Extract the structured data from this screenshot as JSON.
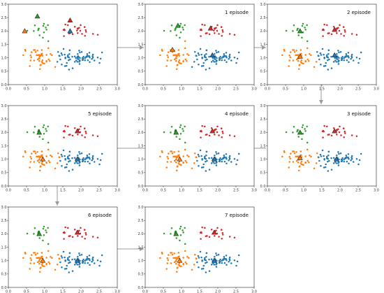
{
  "colors": {
    "blue": "#1f77b4",
    "orange": "#ff7f0e",
    "green": "#2ca02c",
    "red": "#d62728",
    "arrow": "#999999"
  },
  "chart_data": {
    "type": "scatter",
    "axis": {
      "xlim": [
        0,
        3
      ],
      "ylim": [
        0,
        3
      ],
      "xticks": [
        "0.0",
        "0.5",
        "1.0",
        "1.5",
        "2.0",
        "2.5",
        "3.0"
      ],
      "yticks": [
        "0.0",
        "0.5",
        "1.0",
        "1.5",
        "2.0",
        "2.5",
        "3.0"
      ]
    },
    "panels": [
      {
        "label": "",
        "centroids": [
          [
            1.7,
            2.0
          ],
          [
            0.45,
            2.0
          ],
          [
            0.8,
            2.55
          ],
          [
            1.7,
            2.4
          ]
        ]
      },
      {
        "label": "1 episode",
        "centroids": [
          [
            1.85,
            1.1
          ],
          [
            0.75,
            1.3
          ],
          [
            0.9,
            2.2
          ],
          [
            1.8,
            2.1
          ]
        ]
      },
      {
        "label": "2 episode",
        "centroids": [
          [
            1.85,
            1.1
          ],
          [
            0.9,
            1.05
          ],
          [
            0.9,
            2.0
          ],
          [
            1.85,
            2.05
          ]
        ]
      },
      {
        "label": "3 episode",
        "centroids": [
          [
            1.9,
            1.0
          ],
          [
            0.9,
            1.05
          ],
          [
            0.9,
            2.0
          ],
          [
            1.85,
            2.05
          ]
        ]
      },
      {
        "label": "4 episode",
        "centroids": [
          [
            1.9,
            1.0
          ],
          [
            0.95,
            1.0
          ],
          [
            0.85,
            2.0
          ],
          [
            1.85,
            2.05
          ]
        ]
      },
      {
        "label": "5 episode",
        "centroids": [
          [
            1.9,
            1.0
          ],
          [
            0.95,
            1.0
          ],
          [
            0.85,
            2.0
          ],
          [
            1.9,
            2.05
          ]
        ]
      },
      {
        "label": "6 episode",
        "centroids": [
          [
            1.9,
            1.0
          ],
          [
            0.95,
            1.0
          ],
          [
            0.85,
            2.0
          ],
          [
            1.9,
            2.05
          ]
        ]
      },
      {
        "label": "7 episode",
        "centroids": [
          [
            1.9,
            1.0
          ],
          [
            0.95,
            1.0
          ],
          [
            0.85,
            2.0
          ],
          [
            1.9,
            2.05
          ]
        ]
      }
    ],
    "initial_cluster": [
      0,
      0,
      1,
      0,
      0,
      0,
      0,
      3,
      0,
      2,
      0,
      1,
      2,
      0,
      1,
      0,
      3,
      0,
      2,
      0,
      2,
      3,
      1,
      3,
      0,
      0,
      3,
      0,
      3,
      3,
      0,
      1,
      0,
      2,
      3,
      1,
      2,
      3,
      3,
      3,
      0,
      3,
      1,
      3,
      1,
      3,
      1,
      1,
      1,
      1,
      0,
      1,
      0,
      1,
      0,
      0,
      1,
      1,
      0,
      0,
      2,
      0,
      0,
      0,
      1,
      0,
      3,
      0,
      0,
      1,
      0,
      1,
      2,
      2,
      0,
      1,
      1,
      0,
      0,
      2,
      2,
      1,
      3,
      0,
      3,
      1,
      3,
      3,
      0,
      0,
      1,
      0,
      1,
      1,
      0,
      1,
      0,
      1,
      1,
      0,
      0,
      0,
      0,
      1,
      0,
      3,
      1,
      1,
      1,
      0,
      0,
      0,
      0,
      1,
      0,
      0,
      1,
      0,
      0,
      0,
      0,
      0,
      0,
      0,
      1,
      2,
      0,
      3,
      1,
      1,
      3,
      1,
      3,
      0,
      1,
      0,
      3,
      1,
      1,
      0,
      2,
      0,
      0,
      0,
      0,
      0,
      0,
      0,
      0,
      2,
      0,
      1,
      0,
      1,
      3,
      1,
      0,
      2,
      3,
      0
    ],
    "points": [
      [
        1.9,
        0.85,
        0
      ],
      [
        1.35,
        0.85,
        0
      ],
      [
        0.7,
        1.29,
        1
      ],
      [
        1.47,
        0.75,
        0
      ],
      [
        1.46,
        1.17,
        0
      ],
      [
        1.9,
        1.03,
        0
      ],
      [
        1.67,
        0.56,
        0
      ],
      [
        1.54,
        2.06,
        0
      ],
      [
        2.23,
        1.06,
        0
      ],
      [
        0.82,
        2.03,
        2
      ],
      [
        2.54,
        0.97,
        0
      ],
      [
        0.64,
        1.21,
        1
      ],
      [
        0.96,
        2.19,
        2
      ],
      [
        1.96,
        0.77,
        0
      ],
      [
        0.59,
        0.69,
        1
      ],
      [
        1.52,
        1.33,
        0
      ],
      [
        1.92,
        2.09,
        3
      ],
      [
        2.23,
        1.19,
        0
      ],
      [
        0.83,
        2.08,
        2
      ],
      [
        1.61,
        0.81,
        0
      ],
      [
        0.52,
        2.01,
        2
      ],
      [
        1.67,
        1.91,
        3
      ],
      [
        0.82,
        1.1,
        1
      ],
      [
        2.1,
        2.15,
        3
      ],
      [
        1.64,
        1.03,
        0
      ],
      [
        1.77,
        0.61,
        0
      ],
      [
        2.14,
        1.97,
        3
      ],
      [
        2.11,
        0.91,
        0
      ],
      [
        1.53,
        1.81,
        3
      ],
      [
        1.83,
        2.16,
        3
      ],
      [
        2.33,
        1.01,
        0
      ],
      [
        0.75,
        1.22,
        1
      ],
      [
        1.69,
        1.28,
        0
      ],
      [
        1.1,
        1.62,
        2
      ],
      [
        2.03,
        1.89,
        3
      ],
      [
        1.29,
        0.66,
        1
      ],
      [
        0.84,
        2.09,
        2
      ],
      [
        2.1,
        2.15,
        3
      ],
      [
        1.64,
        2.22,
        3
      ],
      [
        1.91,
        2.08,
        3
      ],
      [
        1.56,
        0.69,
        0
      ],
      [
        2.33,
        1.89,
        3
      ],
      [
        1.05,
        1.11,
        1
      ],
      [
        1.55,
        2.03,
        3
      ],
      [
        0.78,
        1.1,
        1
      ],
      [
        2.11,
        1.82,
        3
      ],
      [
        1.16,
        1.14,
        1
      ],
      [
        0.91,
        1.14,
        1
      ],
      [
        0.81,
        0.94,
        1
      ],
      [
        0.81,
        1.1,
        1
      ],
      [
        2.21,
        1.06,
        0
      ],
      [
        0.41,
        1.1,
        1
      ],
      [
        2.51,
        0.81,
        0
      ],
      [
        0.88,
        0.72,
        1
      ],
      [
        1.86,
        0.99,
        0
      ],
      [
        1.48,
        1.11,
        0
      ],
      [
        0.94,
        0.81,
        1
      ],
      [
        0.92,
        0.85,
        1
      ],
      [
        2.37,
        0.9,
        0
      ],
      [
        1.69,
        1.28,
        0
      ],
      [
        0.7,
        2.0,
        2
      ],
      [
        1.97,
        0.89,
        0
      ],
      [
        1.83,
        1.05,
        0
      ],
      [
        1.94,
        1.03,
        0
      ],
      [
        0.63,
        1.02,
        1
      ],
      [
        1.68,
        1.14,
        0
      ],
      [
        2.46,
        1.86,
        3
      ],
      [
        1.37,
        1.22,
        0
      ],
      [
        1.96,
        0.91,
        0
      ],
      [
        0.94,
        0.91,
        1
      ],
      [
        2.16,
        1.03,
        0
      ],
      [
        1.2,
        1.1,
        1
      ],
      [
        0.98,
        2.27,
        2
      ],
      [
        1.09,
        2.22,
        2
      ],
      [
        2.04,
        0.99,
        0
      ],
      [
        0.8,
        1.27,
        1
      ],
      [
        0.89,
        0.74,
        1
      ],
      [
        1.4,
        1.08,
        0
      ],
      [
        1.64,
        1.05,
        0
      ],
      [
        0.73,
        2.21,
        2
      ],
      [
        0.98,
        1.95,
        2
      ],
      [
        0.46,
        1.3,
        1
      ],
      [
        1.89,
        2.02,
        3
      ],
      [
        1.57,
        0.98,
        0
      ],
      [
        1.57,
        2.24,
        3
      ],
      [
        0.73,
        1.29,
        1
      ],
      [
        1.98,
        2.01,
        3
      ],
      [
        1.91,
        1.92,
        3
      ],
      [
        1.95,
        0.85,
        0
      ],
      [
        1.41,
        1.07,
        0
      ],
      [
        1.05,
        0.88,
        1
      ],
      [
        2.24,
        1.01,
        0
      ],
      [
        0.85,
        1.11,
        1
      ],
      [
        0.94,
        1.08,
        1
      ],
      [
        1.67,
        1.01,
        0
      ],
      [
        0.92,
        1.29,
        1
      ],
      [
        1.6,
        0.7,
        0
      ],
      [
        0.61,
        1.09,
        1
      ],
      [
        0.87,
        0.58,
        1
      ],
      [
        2.11,
        0.99,
        0
      ],
      [
        1.83,
        0.85,
        0
      ],
      [
        2.02,
        1.22,
        0
      ],
      [
        1.64,
        1.1,
        0
      ],
      [
        0.93,
        1.15,
        1
      ],
      [
        2.32,
        1.06,
        0
      ],
      [
        1.99,
        2.22,
        3
      ],
      [
        1.11,
        0.94,
        1
      ],
      [
        0.85,
        0.88,
        1
      ],
      [
        1.14,
        0.88,
        1
      ],
      [
        2.18,
        1.07,
        0
      ],
      [
        1.7,
        0.94,
        0
      ],
      [
        2.06,
        0.97,
        0
      ],
      [
        1.97,
        1.2,
        0
      ],
      [
        0.9,
        1.1,
        1
      ],
      [
        1.66,
        0.91,
        0
      ],
      [
        2.18,
        1.08,
        0
      ],
      [
        0.47,
        1.26,
        1
      ],
      [
        1.55,
        1.12,
        0
      ],
      [
        2.05,
        0.92,
        0
      ],
      [
        2.46,
        1.01,
        0
      ],
      [
        2.15,
        1.05,
        0
      ],
      [
        2.33,
        1.12,
        0
      ],
      [
        2.04,
        0.92,
        0
      ],
      [
        2.07,
        1.04,
        0
      ],
      [
        0.86,
        1.05,
        1
      ],
      [
        1.03,
        2.13,
        2
      ],
      [
        1.91,
        0.98,
        0
      ],
      [
        2.13,
        2.03,
        3
      ],
      [
        0.71,
        0.9,
        1
      ],
      [
        1.1,
        1.36,
        1
      ],
      [
        1.91,
        2.1,
        3
      ],
      [
        0.88,
        1.07,
        1
      ],
      [
        1.95,
        2.12,
        3
      ],
      [
        2.17,
        1.14,
        0
      ],
      [
        1.05,
        0.86,
        1
      ],
      [
        1.92,
        0.95,
        0
      ],
      [
        1.7,
        1.92,
        3
      ],
      [
        0.86,
        0.98,
        1
      ],
      [
        0.61,
        0.9,
        1
      ],
      [
        2.19,
        0.91,
        0
      ],
      [
        0.86,
        1.84,
        2
      ],
      [
        1.97,
        0.99,
        0
      ],
      [
        1.76,
        1.04,
        0
      ],
      [
        2.58,
        1.2,
        0
      ],
      [
        2.24,
        0.84,
        0
      ],
      [
        1.91,
        1.14,
        0
      ],
      [
        2.14,
        1.03,
        0
      ],
      [
        1.95,
        1.27,
        0
      ],
      [
        1.43,
        0.94,
        0
      ],
      [
        0.95,
        1.75,
        2
      ],
      [
        1.92,
        1.06,
        0
      ],
      [
        0.98,
        0.79,
        1
      ],
      [
        1.57,
        1.01,
        0
      ],
      [
        0.99,
        0.79,
        1
      ],
      [
        1.77,
        1.88,
        3
      ],
      [
        0.84,
        0.98,
        1
      ],
      [
        2.3,
        0.96,
        0
      ],
      [
        1.05,
        2.05,
        2
      ],
      [
        1.52,
        2.04,
        3
      ],
      [
        1.87,
        0.9,
        0
      ]
    ]
  }
}
